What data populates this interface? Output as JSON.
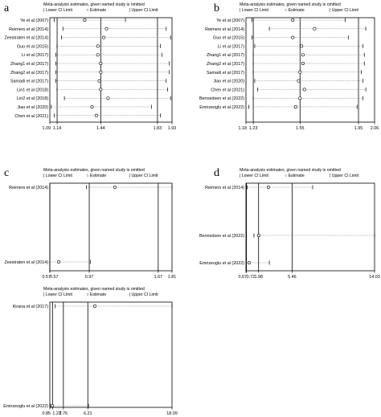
{
  "figure": {
    "header": "Meta-analysis estimates, given named study is omitted",
    "legend": {
      "lower": "Lower CI Limit",
      "estimate": "Estimate",
      "upper": "Upper CI Limit"
    }
  },
  "chart_data": [
    {
      "type": "forest",
      "panel": "a",
      "studies": [
        "Ye et al (2007)",
        "Reimers et al (2014)",
        "Zeestraten et al (2014)",
        "Guo et al (2015)",
        "Li et al (2017)",
        "Zhang1 et al (2017)",
        "Zhang2 et al (2017)",
        "Samadi et al (2017)",
        "Lin1 et al (2018)",
        "Lin2 et al (2018)",
        "Jiao et al (2020)",
        "Chen et al (2021)"
      ],
      "estimate": [
        1.33,
        1.48,
        1.46,
        1.42,
        1.42,
        1.44,
        1.44,
        1.43,
        1.44,
        1.49,
        1.38,
        1.41
      ],
      "lower": [
        1.12,
        1.18,
        1.17,
        1.14,
        1.13,
        1.13,
        1.13,
        1.13,
        1.14,
        1.19,
        1.1,
        1.12
      ],
      "upper": [
        1.61,
        1.89,
        1.92,
        1.85,
        1.86,
        1.91,
        1.91,
        1.89,
        1.9,
        1.92,
        1.79,
        1.85
      ],
      "reference": [
        1.14,
        1.44,
        1.83
      ],
      "xlim": [
        1.09,
        1.93
      ],
      "ticks": [
        "1.09",
        "1.14",
        "1.44",
        "1.83",
        "1.93"
      ]
    },
    {
      "type": "forest",
      "panel": "b",
      "studies": [
        "Ye et al (2007)",
        "Reimers et al (2014)",
        "Guo et al (2015)",
        "Li et al (2017)",
        "Zhang1 et al (2017)",
        "Zhang2 et al (2017)",
        "Samadi et al (2017)",
        "Jiao et al (2020)",
        "Chen et al (2021)",
        "Bennedsen et al (2022)",
        "Emirzeoglu et al (2022)"
      ],
      "estimate": [
        1.5,
        1.65,
        1.5,
        1.56,
        1.57,
        1.57,
        1.55,
        1.54,
        1.58,
        1.55,
        1.52
      ],
      "lower": [
        1.22,
        1.34,
        1.22,
        1.24,
        1.23,
        1.23,
        1.23,
        1.24,
        1.26,
        1.23,
        1.2
      ],
      "upper": [
        1.86,
        2.0,
        1.88,
        1.98,
        1.99,
        1.99,
        1.97,
        1.98,
        2.0,
        1.98,
        1.94
      ],
      "reference": [
        1.23,
        1.55,
        1.95
      ],
      "xlim": [
        1.18,
        2.06
      ],
      "ticks": [
        "1.18",
        "1.23",
        "1.55",
        "1.95",
        "2.06"
      ]
    },
    {
      "type": "forest",
      "panel": "c",
      "studies": [
        "Reimers et al (2014)",
        "Zeestraten et al (2014)"
      ],
      "estimate": [
        1.23,
        0.66
      ],
      "lower": [
        0.94,
        0.57
      ],
      "upper": [
        1.81,
        0.98
      ],
      "reference": [
        0.57,
        0.97,
        1.67
      ],
      "xlim": [
        0.57,
        1.81
      ],
      "ticks": [
        "0.57",
        "0.57",
        "0.97",
        "1.67",
        "1.81"
      ]
    },
    {
      "type": "forest",
      "panel": "d",
      "studies": [
        "Reimers et al (2014)",
        "Bennedsen et al (2022)",
        "Emirzeoglu et al (2022)"
      ],
      "estimate": [
        3.0,
        2.0,
        1.0
      ],
      "lower": [
        0.8,
        1.5,
        0.72
      ],
      "upper": [
        7.6,
        14.03,
        3.1
      ],
      "reference": [
        0.72,
        1.98,
        5.46
      ],
      "xlim": [
        0.67,
        14.03
      ],
      "ticks": [
        "0.67",
        "0.72",
        "1.98",
        "5.46",
        "14.03"
      ]
    },
    {
      "type": "forest",
      "panel": "",
      "studies": [
        "Kirana et al (2017)",
        "Emirzeoglu et al (2022)"
      ],
      "estimate": [
        7.2,
        1.2
      ],
      "lower": [
        1.6,
        0.9
      ],
      "upper": [
        18.09,
        6.3
      ],
      "reference": [
        1.23,
        2.76,
        6.21
      ],
      "xlim": [
        0.85,
        18.09
      ],
      "ticks": [
        "0.85",
        "1.23",
        "2.76",
        "6.21",
        "18.09"
      ]
    }
  ]
}
